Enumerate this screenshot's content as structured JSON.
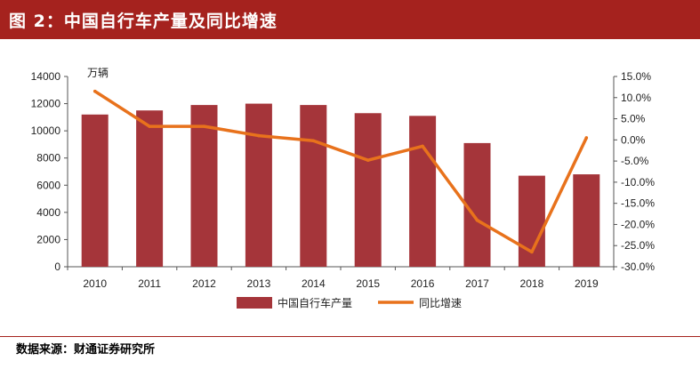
{
  "header": {
    "title": "图 2：中国自行车产量及同比增速"
  },
  "footer": {
    "source": "数据来源：财通证券研究所"
  },
  "colors": {
    "bar": "#a5353a",
    "line": "#e8721c",
    "title_bg": "#a5221e"
  },
  "chart_data": {
    "type": "bar+line",
    "title": "",
    "unit_label": "万辆",
    "categories": [
      "2010",
      "2011",
      "2012",
      "2013",
      "2014",
      "2015",
      "2016",
      "2017",
      "2018",
      "2019"
    ],
    "series": [
      {
        "name": "中国自行车产量",
        "type": "bar",
        "axis": "left",
        "values": [
          11200,
          11500,
          11900,
          12000,
          11900,
          11300,
          11100,
          9100,
          6700,
          6800
        ]
      },
      {
        "name": "同比增速",
        "type": "line",
        "axis": "right",
        "unit": "%",
        "values": [
          11.5,
          3.2,
          3.2,
          1.0,
          -0.2,
          -4.8,
          -1.5,
          -19.0,
          -26.5,
          0.5
        ]
      }
    ],
    "y_left": {
      "min": 0,
      "max": 14000,
      "ticks": [
        "0",
        "2000",
        "4000",
        "6000",
        "8000",
        "10000",
        "12000",
        "14000"
      ]
    },
    "y_right": {
      "min": -30,
      "max": 15,
      "ticks": [
        "-30.0%",
        "-25.0%",
        "-20.0%",
        "-15.0%",
        "-10.0%",
        "-5.0%",
        "0.0%",
        "5.0%",
        "10.0%",
        "15.0%"
      ]
    },
    "legend_position": "bottom"
  }
}
